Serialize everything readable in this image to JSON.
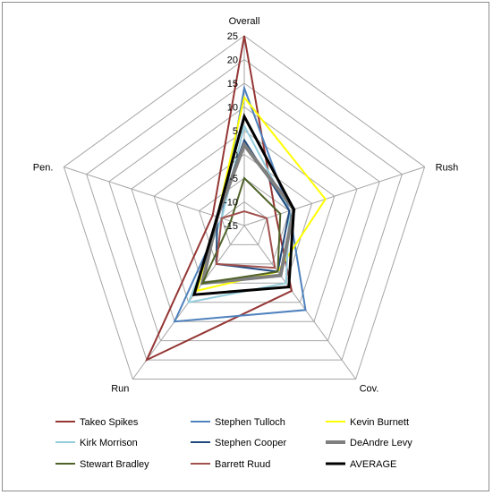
{
  "chart_data": {
    "type": "radar",
    "title": "",
    "axes": [
      "Overall",
      "Rush",
      "Cov.",
      "Run",
      "Pen."
    ],
    "rlim": [
      -15,
      25
    ],
    "ticks": [
      "-15",
      "-10",
      "-5",
      "0",
      "5",
      "10",
      "15",
      "20",
      "25"
    ],
    "grid": true,
    "legend": "bottom",
    "series": [
      {
        "name": "Takeo Spikes",
        "color": "#943634",
        "width": 2,
        "values": [
          25,
          -8,
          2,
          20,
          -8
        ]
      },
      {
        "name": "Stephen Tulloch",
        "color": "#4f81bd",
        "width": 2,
        "values": [
          14,
          -5,
          7,
          10,
          -10
        ]
      },
      {
        "name": "Kevin Burnett",
        "color": "#ffff00",
        "width": 2,
        "values": [
          12,
          3,
          -3,
          2,
          -9
        ]
      },
      {
        "name": "Kirk Morrison",
        "color": "#93cddd",
        "width": 2,
        "values": [
          6,
          -5,
          0,
          5,
          -10
        ]
      },
      {
        "name": "Stephen Cooper",
        "color": "#1f497d",
        "width": 2,
        "values": [
          3,
          -5,
          -3,
          -5,
          -9
        ]
      },
      {
        "name": "DeAndre Levy",
        "color": "#7f7f7f",
        "width": 4,
        "values": [
          2,
          -4,
          -2,
          0,
          -9
        ]
      },
      {
        "name": "Stewart Bradley",
        "color": "#4f6228",
        "width": 2,
        "values": [
          -5,
          -7,
          -3,
          0,
          -12
        ]
      },
      {
        "name": "Barrett Ruud",
        "color": "#a0504d",
        "width": 2,
        "values": [
          -12,
          -10,
          -4,
          -5,
          -10
        ]
      },
      {
        "name": "AVERAGE",
        "color": "#000000",
        "width": 3,
        "values": [
          8,
          -4,
          1,
          3,
          -9
        ]
      }
    ]
  }
}
